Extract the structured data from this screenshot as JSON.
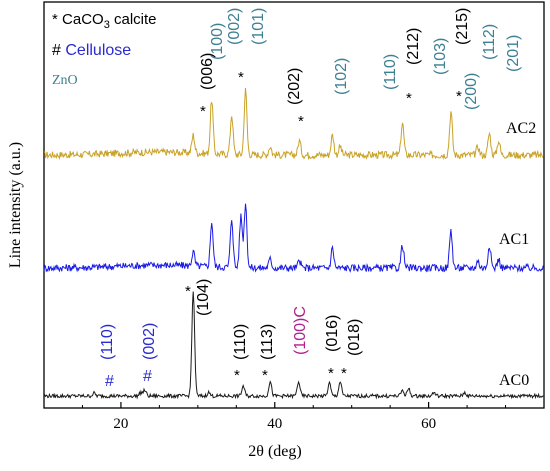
{
  "colors": {
    "AC2": "#c9a227",
    "AC1": "#1a1ae6",
    "AC0": "#1a1a1a",
    "zno_label": "#3d7f93",
    "cellulose": "#2a2ad0",
    "calcite_c": "#b0208f",
    "text": "#000000"
  },
  "chart_data": {
    "type": "line",
    "xlabel": "2θ (deg)",
    "ylabel": "Line intensity (a.u.)",
    "xlim": [
      10,
      75
    ],
    "x_ticks": [
      20,
      40,
      60
    ],
    "x_tick_labels": [
      "20",
      "40",
      "60"
    ],
    "y_ticks_shown": false,
    "legend": {
      "calcite": {
        "symbol": "*",
        "text_before": "CaCO",
        "subscript": "3",
        "text_after": " calcite"
      },
      "cellulose": {
        "symbol": "#",
        "text": "Cellulose"
      },
      "zno": {
        "text": "ZnO"
      }
    },
    "series": [
      {
        "name": "AC2",
        "offset": 2.0,
        "noise": 0.05,
        "peaks": [
          [
            29.4,
            0.25
          ],
          [
            31.8,
            0.75
          ],
          [
            34.4,
            0.55
          ],
          [
            36.2,
            0.9
          ],
          [
            39.4,
            0.12
          ],
          [
            43.2,
            0.2
          ],
          [
            47.5,
            0.28
          ],
          [
            48.5,
            0.12
          ],
          [
            56.6,
            0.45
          ],
          [
            62.9,
            0.6
          ],
          [
            66.4,
            0.12
          ],
          [
            67.9,
            0.3
          ],
          [
            69.1,
            0.2
          ]
        ]
      },
      {
        "name": "AC1",
        "offset": 1.0,
        "noise": 0.05,
        "peaks": [
          [
            29.4,
            0.2
          ],
          [
            31.8,
            0.62
          ],
          [
            34.4,
            0.68
          ],
          [
            35.6,
            0.72
          ],
          [
            36.2,
            0.9
          ],
          [
            39.4,
            0.12
          ],
          [
            43.2,
            0.1
          ],
          [
            47.5,
            0.28
          ],
          [
            56.6,
            0.32
          ],
          [
            62.9,
            0.52
          ],
          [
            66.4,
            0.1
          ],
          [
            67.9,
            0.32
          ],
          [
            69.1,
            0.12
          ]
        ]
      },
      {
        "name": "AC0",
        "offset": 0.0,
        "noise": 0.025,
        "peaks": [
          [
            16.5,
            0.04
          ],
          [
            22.6,
            0.05
          ],
          [
            23.1,
            0.08
          ],
          [
            29.4,
            1.45
          ],
          [
            31.4,
            0.05
          ],
          [
            35.9,
            0.14
          ],
          [
            39.4,
            0.2
          ],
          [
            43.1,
            0.2
          ],
          [
            47.1,
            0.18
          ],
          [
            48.5,
            0.2
          ],
          [
            56.6,
            0.08
          ],
          [
            57.4,
            0.1
          ],
          [
            60.7,
            0.05
          ],
          [
            64.7,
            0.05
          ]
        ]
      }
    ],
    "annotations": [
      {
        "id": "ac2-006",
        "text": "(006)",
        "kind": "calcite"
      },
      {
        "id": "ac2-100",
        "text": "(100)",
        "kind": "zno"
      },
      {
        "id": "ac2-002",
        "text": "(002)",
        "kind": "zno"
      },
      {
        "id": "ac2-101",
        "text": "(101)",
        "kind": "zno"
      },
      {
        "id": "ac2-202",
        "text": "(202)",
        "kind": "calcite"
      },
      {
        "id": "ac2-102",
        "text": "(102)",
        "kind": "zno"
      },
      {
        "id": "ac2-110",
        "text": "(110)",
        "kind": "zno"
      },
      {
        "id": "ac2-212",
        "text": "(212)",
        "kind": "calcite"
      },
      {
        "id": "ac2-103",
        "text": "(103)",
        "kind": "zno"
      },
      {
        "id": "ac2-215",
        "text": "(215)",
        "kind": "calcite"
      },
      {
        "id": "ac2-200",
        "text": "(200)",
        "kind": "zno"
      },
      {
        "id": "ac2-112",
        "text": "(112)",
        "kind": "zno"
      },
      {
        "id": "ac2-201",
        "text": "(201)",
        "kind": "zno"
      },
      {
        "id": "ac0-110",
        "text": "(110)",
        "kind": "cellulose"
      },
      {
        "id": "ac0-002",
        "text": "(002)",
        "kind": "cellulose"
      },
      {
        "id": "ac0-104",
        "text": "(104)",
        "kind": "calcite"
      },
      {
        "id": "ac0-110c",
        "text": "(110)",
        "kind": "calcite"
      },
      {
        "id": "ac0-113",
        "text": "(113)",
        "kind": "calcite"
      },
      {
        "id": "ac0-100c",
        "text": "(100)C",
        "kind": "calcite_c"
      },
      {
        "id": "ac0-016",
        "text": "(016)",
        "kind": "calcite"
      },
      {
        "id": "ac0-018",
        "text": "(018)",
        "kind": "calcite"
      }
    ],
    "markers": {
      "calcite": "*",
      "cellulose": "#"
    }
  }
}
